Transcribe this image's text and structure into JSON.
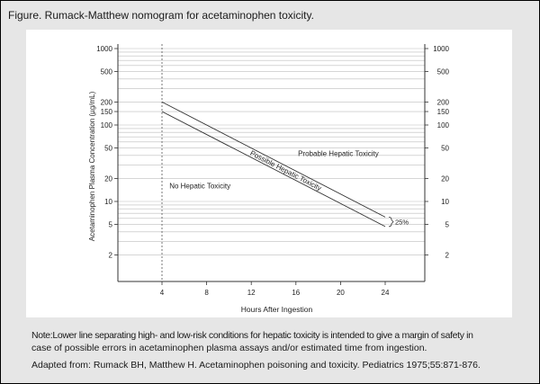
{
  "figure": {
    "title": "Figure. Rumack-Matthew nomogram for acetaminophen toxicity."
  },
  "chart_data": {
    "type": "line",
    "xlabel": "Hours After Ingestion",
    "ylabel": "Acetaminophen Plasma Concentration (µg/mL)",
    "y_scale": "log",
    "xlim": [
      0,
      26
    ],
    "ylim": [
      1,
      1000
    ],
    "x_ticks": [
      4,
      8,
      12,
      16,
      20,
      24
    ],
    "y_ticks": [
      2,
      5,
      10,
      20,
      50,
      100,
      150,
      200,
      500,
      1000
    ],
    "y_tick_labels_right": [
      2,
      5,
      10,
      20,
      50,
      100,
      150,
      200,
      500,
      1000
    ],
    "grid": "horizontal minor lines on log scale",
    "reference_vline_x": 4,
    "series": [
      {
        "x": [
          4,
          24
        ],
        "y": [
          200,
          6.25
        ]
      },
      {
        "x": [
          4,
          24
        ],
        "y": [
          150,
          4.7
        ]
      }
    ],
    "annotations": {
      "band_label": "Possible Hepatic Toxicity",
      "above_label": "Probable Hepatic Toxicity",
      "below_label": "No Hepatic Toxicity",
      "bracket_label": "25%"
    }
  },
  "note": {
    "line1": "Note:Lower line separating high- and low-risk conditions for hepatic toxicity is intended to give a margin of safety in",
    "line2": "case of possible errors in acetaminophen plasma assays and/or estimated time from ingestion."
  },
  "source": "Adapted from: Rumack BH, Matthew H. Acetaminophen poisoning and toxicity. Pediatrics 1975;55:871-876.",
  "colors": {
    "frame_bg": "#e6e6e6",
    "plot_bg": "#ffffff",
    "line": "#333333",
    "grid": "#bdbdbd"
  }
}
